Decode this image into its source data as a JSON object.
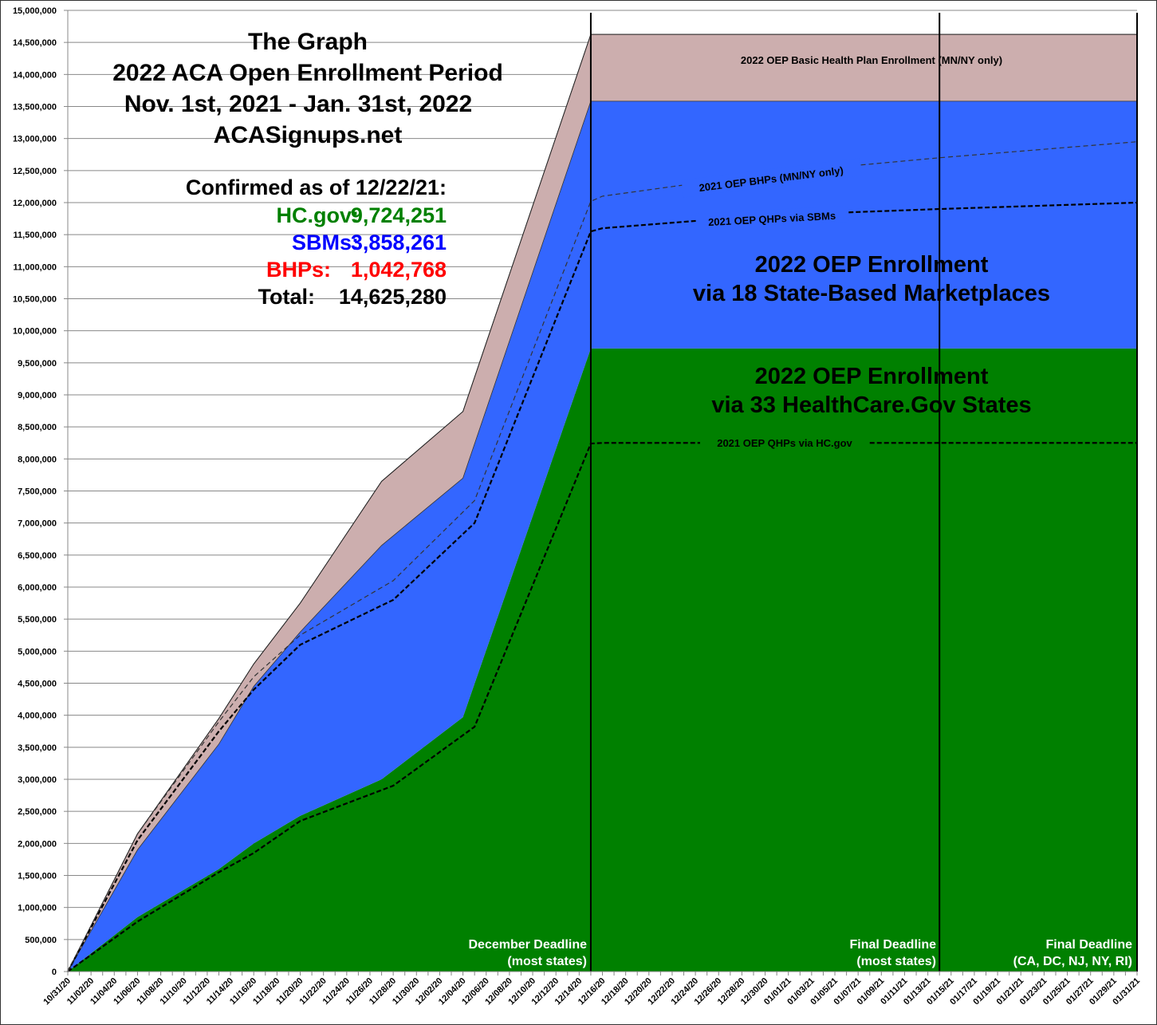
{
  "chart_data": {
    "type": "area",
    "stacked": true,
    "title_lines": [
      "The Graph",
      "2022 ACA Open Enrollment Period",
      "Nov. 1st, 2021 - Jan. 31st, 2022",
      "ACASignups.net"
    ],
    "confirmed": {
      "heading": "Confirmed as of 12/22/21:",
      "rows": [
        {
          "label": "HC.gov:",
          "value": "9,724,251",
          "color": "#008000"
        },
        {
          "label": "SBMs:",
          "value": "3,858,261",
          "color": "#0000ff"
        },
        {
          "label": "BHPs:",
          "value": "1,042,768",
          "color": "#ff0000"
        },
        {
          "label": "Total:",
          "value": "14,625,280",
          "color": "#000000"
        }
      ]
    },
    "ylim": [
      0,
      15000000
    ],
    "ytick_step": 500000,
    "grid": true,
    "x_start": "10/31/20",
    "x_end": "01/31/21",
    "xtick_labels": [
      "10/31/20",
      "11/02/20",
      "11/04/20",
      "11/06/20",
      "11/08/20",
      "11/10/20",
      "11/12/20",
      "11/14/20",
      "11/16/20",
      "11/18/20",
      "11/20/20",
      "11/22/20",
      "11/24/20",
      "11/26/20",
      "11/28/20",
      "11/30/20",
      "12/02/20",
      "12/04/20",
      "12/06/20",
      "12/08/20",
      "12/10/20",
      "12/12/20",
      "12/14/20",
      "12/16/20",
      "12/18/20",
      "12/20/20",
      "12/22/20",
      "12/24/20",
      "12/26/20",
      "12/28/20",
      "12/30/20",
      "01/01/21",
      "01/03/21",
      "01/05/21",
      "01/07/21",
      "01/09/21",
      "01/11/21",
      "01/13/21",
      "01/15/21",
      "01/17/21",
      "01/19/21",
      "01/21/21",
      "01/23/21",
      "01/25/21",
      "01/27/21",
      "01/29/21",
      "01/31/21"
    ],
    "x": [
      "10/31/20",
      "11/06/20",
      "11/13/20",
      "11/16/20",
      "11/20/20",
      "11/27/20",
      "12/04/20",
      "12/15/20",
      "01/31/21"
    ],
    "series": [
      {
        "name": "2022 OEP Enrollment via 33 HealthCare.Gov States",
        "color": "#008000",
        "values": [
          0,
          850000,
          1600000,
          2000000,
          2430000,
          3000000,
          3970000,
          9724251,
          9724251
        ]
      },
      {
        "name": "2022 OEP Enrollment via 18 State-Based Marketplaces",
        "color": "#3366ff",
        "values": [
          0,
          1050000,
          1950000,
          2450000,
          2870000,
          3650000,
          3730000,
          3858261,
          3858261
        ]
      },
      {
        "name": "2022 OEP Basic Health Plan Enrollment (MN/NY only)",
        "color": "#ccaeae",
        "values": [
          0,
          250000,
          400000,
          350000,
          450000,
          1000000,
          1040000,
          1042768,
          1042768
        ]
      }
    ],
    "comparison_x": [
      "10/31/20",
      "11/06/20",
      "11/13/20",
      "11/16/20",
      "11/20/20",
      "11/28/20",
      "12/05/20",
      "12/15/20",
      "12/16/20",
      "12/30/20",
      "01/14/21",
      "01/31/21"
    ],
    "comparison_lines": [
      {
        "name": "2021 OEP QHPs via HC.gov",
        "style": "dashed-bold",
        "values": [
          0,
          780000,
          1550000,
          1850000,
          2350000,
          2900000,
          3820000,
          8240000,
          8250000,
          8250000,
          8250000,
          8250000
        ]
      },
      {
        "name": "2021 OEP QHPs via SBMs",
        "style": "dashed-bold",
        "values": [
          0,
          2050000,
          3750000,
          4400000,
          5100000,
          5800000,
          7000000,
          11550000,
          11600000,
          11800000,
          11900000,
          12000000
        ]
      },
      {
        "name": "2021 OEP BHPs (MN/NY only)",
        "style": "dashed-thin",
        "values": [
          0,
          2150000,
          3900000,
          4600000,
          5250000,
          6100000,
          7350000,
          12020000,
          12100000,
          12450000,
          12700000,
          12950000
        ]
      }
    ],
    "deadlines": [
      {
        "date": "12/15/20",
        "label1": "December Deadline",
        "label2": "(most states)"
      },
      {
        "date": "01/14/21",
        "label1": "Final Deadline",
        "label2": "(most states)"
      },
      {
        "date": "01/31/21",
        "label1": "Final Deadline",
        "label2": "(CA, DC, NJ, NY, RI)"
      }
    ]
  }
}
